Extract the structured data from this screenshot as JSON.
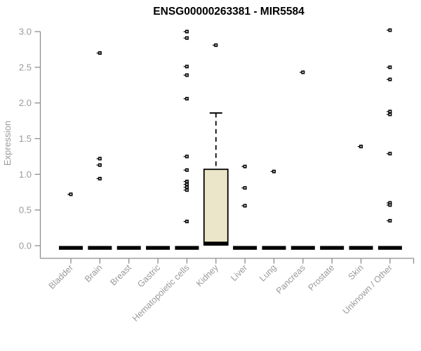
{
  "chart_data": {
    "type": "boxplot",
    "title": "ENSG00000263381 - MIR5584",
    "ylabel": "Expression",
    "xlabel": "",
    "ylim": [
      0.0,
      3.0
    ],
    "yticks": [
      0.0,
      0.5,
      1.0,
      1.5,
      2.0,
      2.5,
      3.0
    ],
    "grid": false,
    "legend": "none",
    "categories": [
      "Bladder",
      "Brain",
      "Breast",
      "Gastric",
      "Hematopoietic cells",
      "Kidney",
      "Liver",
      "Lung",
      "Pancreas",
      "Prostate",
      "Skin",
      "Unknown / Other"
    ],
    "series": [
      {
        "category": "Bladder",
        "median": 0.0,
        "q1": 0.0,
        "q3": 0.0,
        "whisker_low": 0.0,
        "whisker_high": 0.0,
        "outliers": [
          0.72
        ]
      },
      {
        "category": "Brain",
        "median": 0.0,
        "q1": 0.0,
        "q3": 0.0,
        "whisker_low": 0.0,
        "whisker_high": 0.0,
        "outliers": [
          2.7,
          1.22,
          1.13,
          0.94
        ]
      },
      {
        "category": "Breast",
        "median": 0.0,
        "q1": 0.0,
        "q3": 0.0,
        "whisker_low": 0.0,
        "whisker_high": 0.0,
        "outliers": []
      },
      {
        "category": "Gastric",
        "median": 0.0,
        "q1": 0.0,
        "q3": 0.0,
        "whisker_low": 0.0,
        "whisker_high": 0.0,
        "outliers": []
      },
      {
        "category": "Hematopoietic cells",
        "median": 0.0,
        "q1": 0.0,
        "q3": 0.0,
        "whisker_low": 0.0,
        "whisker_high": 0.0,
        "outliers": [
          3.0,
          2.91,
          2.51,
          2.39,
          2.06,
          1.25,
          1.06,
          0.9,
          0.86,
          0.82,
          0.78,
          0.34
        ]
      },
      {
        "category": "Kidney",
        "median": 0.03,
        "q1": 0.0,
        "q3": 1.07,
        "whisker_low": 0.0,
        "whisker_high": 1.86,
        "outliers": [
          2.81
        ]
      },
      {
        "category": "Liver",
        "median": 0.0,
        "q1": 0.0,
        "q3": 0.0,
        "whisker_low": 0.0,
        "whisker_high": 0.0,
        "outliers": [
          1.11,
          0.81,
          0.56
        ]
      },
      {
        "category": "Lung",
        "median": 0.0,
        "q1": 0.0,
        "q3": 0.0,
        "whisker_low": 0.0,
        "whisker_high": 0.0,
        "outliers": [
          1.04
        ]
      },
      {
        "category": "Pancreas",
        "median": 0.0,
        "q1": 0.0,
        "q3": 0.0,
        "whisker_low": 0.0,
        "whisker_high": 0.0,
        "outliers": [
          2.43
        ]
      },
      {
        "category": "Prostate",
        "median": 0.0,
        "q1": 0.0,
        "q3": 0.0,
        "whisker_low": 0.0,
        "whisker_high": 0.0,
        "outliers": []
      },
      {
        "category": "Skin",
        "median": 0.0,
        "q1": 0.0,
        "q3": 0.0,
        "whisker_low": 0.0,
        "whisker_high": 0.0,
        "outliers": [
          1.39
        ]
      },
      {
        "category": "Unknown / Other",
        "median": 0.0,
        "q1": 0.0,
        "q3": 0.0,
        "whisker_low": 0.0,
        "whisker_high": 0.0,
        "outliers": [
          3.02,
          2.5,
          2.33,
          1.88,
          1.84,
          1.29,
          0.6,
          0.57,
          0.35
        ]
      }
    ],
    "colors": {
      "background": "#ffffff",
      "title": "#000000",
      "axis_line": "#8e8e8e",
      "tick_label": "#9a9a9a",
      "box_fill": "#ebe5c9",
      "box_stroke": "#000000",
      "median": "#000000",
      "point": "#000000"
    }
  }
}
